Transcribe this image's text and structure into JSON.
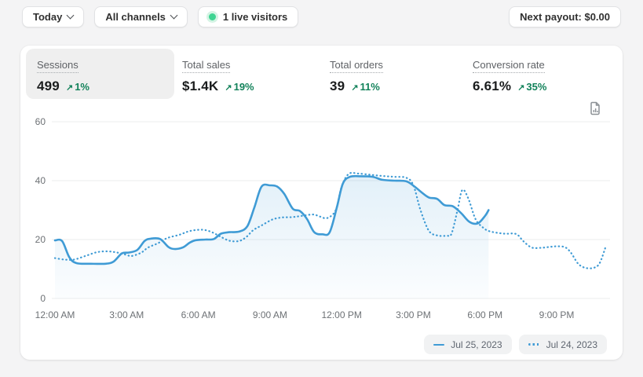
{
  "topbar": {
    "date_range": {
      "label": "Today"
    },
    "channel": {
      "label": "All channels"
    },
    "live_visitors": {
      "label": "1 live visitors"
    },
    "next_payout": {
      "label": "Next payout: $0.00"
    }
  },
  "metrics": [
    {
      "label": "Sessions",
      "value": "499",
      "delta_arrow": "↗",
      "delta": "1%",
      "selected": true
    },
    {
      "label": "Total sales",
      "value": "$1.4K",
      "delta_arrow": "↗",
      "delta": "19%",
      "selected": false
    },
    {
      "label": "Total orders",
      "value": "39",
      "delta_arrow": "↗",
      "delta": "11%",
      "selected": false
    },
    {
      "label": "Conversion rate",
      "value": "6.61%",
      "delta_arrow": "↗",
      "delta": "35%",
      "selected": false
    }
  ],
  "colors": {
    "line_blue": "#3f9bd5",
    "success_green": "#12825a",
    "live_dot_green": "#3ed492",
    "gridline": "#ebedee",
    "axis_text": "#6d7175"
  },
  "legend": [
    {
      "label": "Jul 25, 2023",
      "style": "solid"
    },
    {
      "label": "Jul 24, 2023",
      "style": "dotted"
    }
  ],
  "chart_data": {
    "type": "line",
    "title": "Sessions over time, today vs yesterday",
    "x_axis": {
      "unit": "hour",
      "range": [
        0,
        24
      ],
      "tick_hours": [
        0,
        3,
        6,
        9,
        12,
        15,
        18,
        21
      ],
      "tick_labels": [
        "12:00 AM",
        "3:00 AM",
        "6:00 AM",
        "9:00 AM",
        "12:00 PM",
        "3:00 PM",
        "6:00 PM",
        "9:00 PM"
      ]
    },
    "y_axis": {
      "ticks": [
        0,
        20,
        40,
        60
      ],
      "range": [
        0,
        60
      ]
    },
    "grid": true,
    "legend_position": "bottom-right",
    "series": [
      {
        "name": "Jul 24, 2023",
        "style": "dotted",
        "fill": false,
        "color": "#3f9bd5",
        "points": [
          [
            0,
            13.7
          ],
          [
            0.4,
            13.2
          ],
          [
            0.8,
            13.2
          ],
          [
            1.3,
            14.5
          ],
          [
            1.75,
            15.7
          ],
          [
            2.2,
            16
          ],
          [
            2.6,
            15.6
          ],
          [
            3.0,
            14.8
          ],
          [
            3.2,
            14.4
          ],
          [
            3.6,
            15.5
          ],
          [
            3.9,
            17.3
          ],
          [
            4.3,
            18.7
          ],
          [
            4.7,
            20.5
          ],
          [
            5.2,
            21.6
          ],
          [
            5.6,
            22.8
          ],
          [
            6.0,
            23.3
          ],
          [
            6.3,
            23.2
          ],
          [
            6.6,
            22.4
          ],
          [
            6.9,
            21.1
          ],
          [
            7.3,
            19.6
          ],
          [
            7.7,
            19.5
          ],
          [
            8.0,
            20.8
          ],
          [
            8.3,
            23.2
          ],
          [
            8.65,
            24.8
          ],
          [
            9.1,
            26.8
          ],
          [
            9.5,
            27.5
          ],
          [
            9.9,
            27.6
          ],
          [
            10.3,
            28
          ],
          [
            10.8,
            28.5
          ],
          [
            11.1,
            27.8
          ],
          [
            11.4,
            27.3
          ],
          [
            11.75,
            30
          ],
          [
            12.0,
            38
          ],
          [
            12.3,
            42.3
          ],
          [
            12.7,
            42.4
          ],
          [
            13.2,
            42
          ],
          [
            13.7,
            41.6
          ],
          [
            14.2,
            41.3
          ],
          [
            14.7,
            41
          ],
          [
            15.0,
            38.5
          ],
          [
            15.3,
            30
          ],
          [
            15.65,
            23
          ],
          [
            16.0,
            21.4
          ],
          [
            16.4,
            21.3
          ],
          [
            16.6,
            22
          ],
          [
            16.85,
            30
          ],
          [
            17.05,
            36.8
          ],
          [
            17.3,
            34
          ],
          [
            17.6,
            27
          ],
          [
            17.9,
            24.2
          ],
          [
            18.2,
            22.8
          ],
          [
            18.8,
            22
          ],
          [
            19.3,
            21.9
          ],
          [
            19.6,
            19.5
          ],
          [
            19.95,
            17.3
          ],
          [
            20.35,
            17.2
          ],
          [
            20.7,
            17.5
          ],
          [
            21.0,
            17.7
          ],
          [
            21.35,
            17.4
          ],
          [
            21.6,
            15.5
          ],
          [
            21.9,
            11.8
          ],
          [
            22.2,
            10.4
          ],
          [
            22.55,
            10.4
          ],
          [
            22.8,
            12
          ],
          [
            23.05,
            17.5
          ]
        ]
      },
      {
        "name": "Jul 25, 2023",
        "style": "solid",
        "fill": true,
        "color": "#3f9bd5",
        "points": [
          [
            0,
            19.7
          ],
          [
            0.3,
            19.5
          ],
          [
            0.6,
            14
          ],
          [
            0.9,
            12
          ],
          [
            1.5,
            11.8
          ],
          [
            2.1,
            11.8
          ],
          [
            2.45,
            12.5
          ],
          [
            2.8,
            15.3
          ],
          [
            3.1,
            15.6
          ],
          [
            3.45,
            16.5
          ],
          [
            3.75,
            19.5
          ],
          [
            4.0,
            20.3
          ],
          [
            4.4,
            20.2
          ],
          [
            4.75,
            17.5
          ],
          [
            5.0,
            16.8
          ],
          [
            5.35,
            17.3
          ],
          [
            5.65,
            19
          ],
          [
            5.9,
            19.8
          ],
          [
            6.3,
            20
          ],
          [
            6.65,
            20.2
          ],
          [
            6.95,
            22
          ],
          [
            7.3,
            22.5
          ],
          [
            7.7,
            22.7
          ],
          [
            8.05,
            24.5
          ],
          [
            8.35,
            31
          ],
          [
            8.65,
            38
          ],
          [
            9.0,
            38.4
          ],
          [
            9.3,
            38
          ],
          [
            9.6,
            35.5
          ],
          [
            9.95,
            30.5
          ],
          [
            10.25,
            29.7
          ],
          [
            10.55,
            27
          ],
          [
            10.85,
            22.5
          ],
          [
            11.2,
            21.8
          ],
          [
            11.5,
            22.5
          ],
          [
            11.8,
            31
          ],
          [
            12.05,
            39
          ],
          [
            12.35,
            41.3
          ],
          [
            12.8,
            41.5
          ],
          [
            13.3,
            41.3
          ],
          [
            13.7,
            40.3
          ],
          [
            14.2,
            40
          ],
          [
            14.7,
            39.8
          ],
          [
            15.05,
            38
          ],
          [
            15.35,
            36
          ],
          [
            15.65,
            34.3
          ],
          [
            16.0,
            33.8
          ],
          [
            16.3,
            31.7
          ],
          [
            16.65,
            31.3
          ],
          [
            17.0,
            29
          ],
          [
            17.35,
            26
          ],
          [
            17.7,
            25.5
          ],
          [
            18.0,
            28
          ],
          [
            18.15,
            30
          ]
        ]
      }
    ]
  }
}
